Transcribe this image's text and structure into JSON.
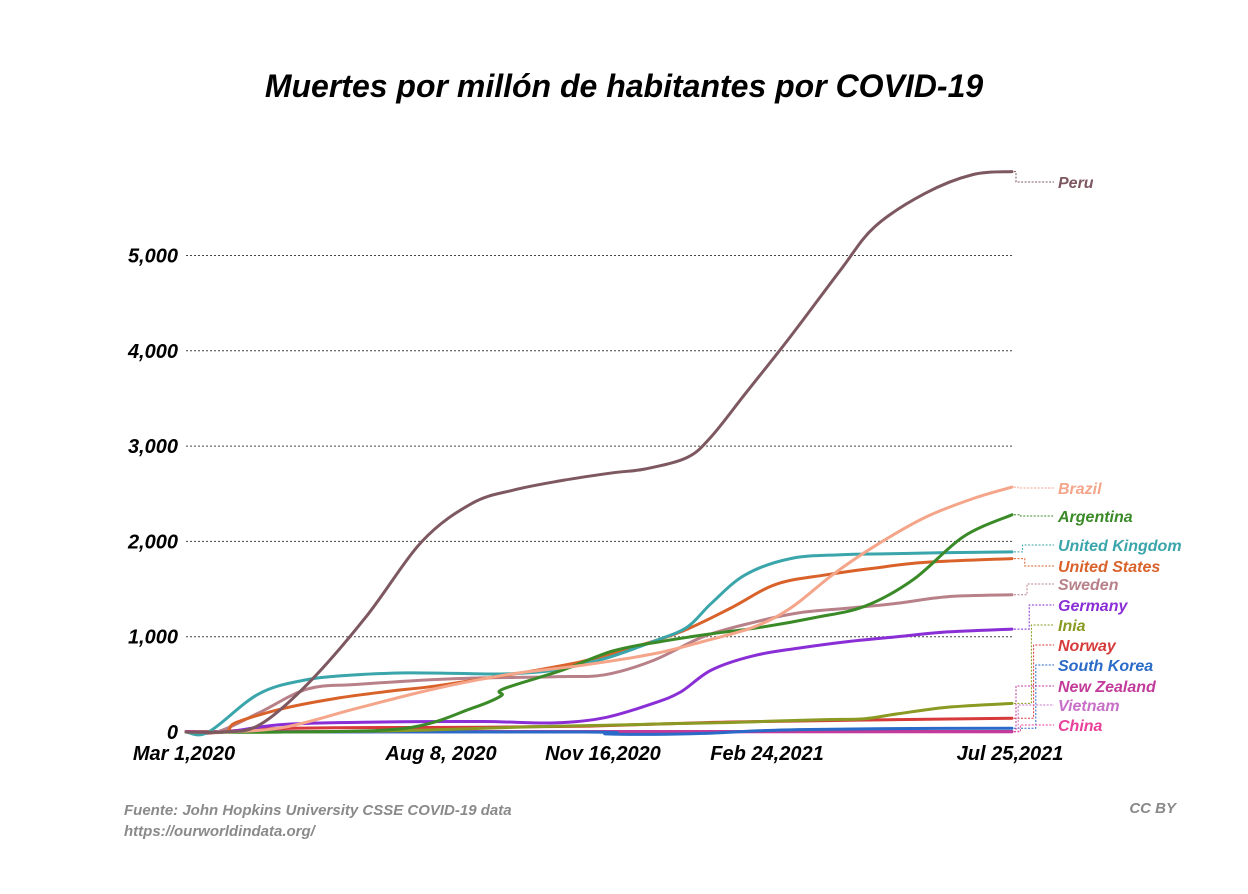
{
  "title": "Muertes por millón de habitantes por COVID-19",
  "source": "Fuente: John Hopkins University CSSE COVID-19 data",
  "url": "https://ourworldindata.org/",
  "license": "CC BY",
  "chart_data": {
    "type": "line",
    "title": "Muertes por millón de habitantes por COVID-19",
    "xlabel": "",
    "ylabel": "",
    "x_axis_type": "date",
    "x_ticks": [
      "Mar 1,2020",
      "Aug 8, 2020",
      "Nov 16,2020",
      "Feb 24,2021",
      "Jul 25,2021"
    ],
    "x_range": [
      "2020-03-01",
      "2021-07-25"
    ],
    "y_ticks": [
      "0",
      "1,000",
      "2,000",
      "3,000",
      "4,000",
      "5,000"
    ],
    "ylim": [
      0,
      6000
    ],
    "grid": "horizontal dotted",
    "legend": "right, labels at line ends",
    "series": [
      {
        "name": "Peru",
        "color": "#7d5860",
        "points": [
          [
            "2020-03-01",
            0
          ],
          [
            "2020-03-23",
            0
          ],
          [
            "2020-04-15",
            70
          ],
          [
            "2020-05-15",
            500
          ],
          [
            "2020-06-20",
            1200
          ],
          [
            "2020-07-25",
            2000
          ],
          [
            "2020-08-25",
            2400
          ],
          [
            "2020-09-20",
            2540
          ],
          [
            "2020-10-20",
            2640
          ],
          [
            "2020-11-20",
            2720
          ],
          [
            "2020-12-10",
            2760
          ],
          [
            "2021-01-05",
            2880
          ],
          [
            "2021-01-20",
            3100
          ],
          [
            "2021-02-10",
            3550
          ],
          [
            "2021-03-10",
            4150
          ],
          [
            "2021-04-10",
            4850
          ],
          [
            "2021-05-01",
            5300
          ],
          [
            "2021-06-01",
            5650
          ],
          [
            "2021-07-01",
            5850
          ],
          [
            "2021-07-25",
            5880
          ]
        ]
      },
      {
        "name": "Brazil",
        "color": "#f4a58a",
        "points": [
          [
            "2020-03-01",
            0
          ],
          [
            "2020-03-25",
            0
          ],
          [
            "2020-05-01",
            50
          ],
          [
            "2020-06-15",
            250
          ],
          [
            "2020-08-01",
            450
          ],
          [
            "2020-09-15",
            600
          ],
          [
            "2020-11-01",
            700
          ],
          [
            "2020-12-15",
            820
          ],
          [
            "2021-01-15",
            950
          ],
          [
            "2021-02-15",
            1100
          ],
          [
            "2021-03-10",
            1300
          ],
          [
            "2021-04-05",
            1650
          ],
          [
            "2021-05-01",
            1950
          ],
          [
            "2021-06-01",
            2250
          ],
          [
            "2021-07-01",
            2450
          ],
          [
            "2021-07-25",
            2570
          ]
        ]
      },
      {
        "name": "Argentina",
        "color": "#3a8a28",
        "points": [
          [
            "2020-03-01",
            0
          ],
          [
            "2020-05-01",
            0
          ],
          [
            "2020-07-15",
            40
          ],
          [
            "2020-08-25",
            250
          ],
          [
            "2020-09-12",
            380
          ],
          [
            "2020-09-13",
            450
          ],
          [
            "2020-10-20",
            650
          ],
          [
            "2020-11-20",
            850
          ],
          [
            "2020-12-20",
            950
          ],
          [
            "2021-01-20",
            1030
          ],
          [
            "2021-02-20",
            1100
          ],
          [
            "2021-03-25",
            1200
          ],
          [
            "2021-04-25",
            1320
          ],
          [
            "2021-05-25",
            1600
          ],
          [
            "2021-06-25",
            2050
          ],
          [
            "2021-07-25",
            2280
          ]
        ]
      },
      {
        "name": "United Kingdom",
        "color": "#3aa5aa",
        "points": [
          [
            "2020-03-01",
            0
          ],
          [
            "2020-03-15",
            0
          ],
          [
            "2020-04-15",
            400
          ],
          [
            "2020-05-15",
            550
          ],
          [
            "2020-06-15",
            600
          ],
          [
            "2020-07-15",
            620
          ],
          [
            "2020-08-15",
            615
          ],
          [
            "2020-09-15",
            610
          ],
          [
            "2020-10-15",
            650
          ],
          [
            "2020-11-15",
            770
          ],
          [
            "2020-12-15",
            950
          ],
          [
            "2021-01-05",
            1100
          ],
          [
            "2021-01-20",
            1350
          ],
          [
            "2021-02-10",
            1650
          ],
          [
            "2021-03-10",
            1820
          ],
          [
            "2021-04-10",
            1860
          ],
          [
            "2021-05-10",
            1870
          ],
          [
            "2021-06-10",
            1880
          ],
          [
            "2021-07-25",
            1890
          ]
        ]
      },
      {
        "name": "United States",
        "color": "#d9622a",
        "points": [
          [
            "2020-03-01",
            0
          ],
          [
            "2020-03-25",
            0
          ],
          [
            "2020-04-01",
            100
          ],
          [
            "2020-05-01",
            250
          ],
          [
            "2020-06-01",
            350
          ],
          [
            "2020-07-01",
            420
          ],
          [
            "2020-08-01",
            480
          ],
          [
            "2020-09-01",
            560
          ],
          [
            "2020-10-01",
            640
          ],
          [
            "2020-11-01",
            740
          ],
          [
            "2020-12-01",
            880
          ],
          [
            "2021-01-01",
            1050
          ],
          [
            "2021-02-01",
            1300
          ],
          [
            "2021-03-01",
            1550
          ],
          [
            "2021-04-01",
            1650
          ],
          [
            "2021-05-01",
            1720
          ],
          [
            "2021-06-01",
            1780
          ],
          [
            "2021-07-25",
            1820
          ]
        ]
      },
      {
        "name": "Sweden",
        "color": "#b88088",
        "points": [
          [
            "2020-03-01",
            0
          ],
          [
            "2020-03-20",
            0
          ],
          [
            "2020-04-15",
            200
          ],
          [
            "2020-05-15",
            450
          ],
          [
            "2020-06-15",
            500
          ],
          [
            "2020-08-15",
            560
          ],
          [
            "2020-10-15",
            580
          ],
          [
            "2020-11-15",
            600
          ],
          [
            "2020-12-15",
            750
          ],
          [
            "2021-01-15",
            1000
          ],
          [
            "2021-02-15",
            1150
          ],
          [
            "2021-03-15",
            1250
          ],
          [
            "2021-04-15",
            1300
          ],
          [
            "2021-05-15",
            1350
          ],
          [
            "2021-06-15",
            1420
          ],
          [
            "2021-07-25",
            1440
          ]
        ]
      },
      {
        "name": "Germany",
        "color": "#8a2ed6",
        "points": [
          [
            "2020-03-01",
            0
          ],
          [
            "2020-03-25",
            0
          ],
          [
            "2020-05-01",
            80
          ],
          [
            "2020-07-01",
            105
          ],
          [
            "2020-09-01",
            110
          ],
          [
            "2020-10-15",
            95
          ],
          [
            "2020-11-15",
            150
          ],
          [
            "2020-12-15",
            300
          ],
          [
            "2021-01-01",
            420
          ],
          [
            "2021-01-20",
            650
          ],
          [
            "2021-02-15",
            800
          ],
          [
            "2021-03-15",
            880
          ],
          [
            "2021-04-15",
            950
          ],
          [
            "2021-05-15",
            1000
          ],
          [
            "2021-06-15",
            1050
          ],
          [
            "2021-07-25",
            1080
          ]
        ]
      },
      {
        "name": "Inia",
        "color": "#8a9a22",
        "points": [
          [
            "2020-03-01",
            0
          ],
          [
            "2020-05-01",
            0
          ],
          [
            "2020-07-01",
            10
          ],
          [
            "2020-08-15",
            30
          ],
          [
            "2020-10-01",
            55
          ],
          [
            "2020-11-16",
            70
          ],
          [
            "2020-12-20",
            85
          ],
          [
            "2021-02-01",
            100
          ],
          [
            "2021-03-01",
            115
          ],
          [
            "2021-04-01",
            130
          ],
          [
            "2021-04-25",
            140
          ],
          [
            "2021-05-15",
            190
          ],
          [
            "2021-06-15",
            260
          ],
          [
            "2021-07-25",
            300
          ]
        ]
      },
      {
        "name": "Norway",
        "color": "#d63a3a",
        "points": [
          [
            "2020-03-01",
            0
          ],
          [
            "2020-03-20",
            0
          ],
          [
            "2020-04-15",
            30
          ],
          [
            "2020-06-01",
            45
          ],
          [
            "2020-09-01",
            50
          ],
          [
            "2020-11-01",
            60
          ],
          [
            "2020-12-01",
            75
          ],
          [
            "2021-01-01",
            90
          ],
          [
            "2021-02-01",
            105
          ],
          [
            "2021-04-01",
            120
          ],
          [
            "2021-05-15",
            130
          ],
          [
            "2021-07-25",
            145
          ]
        ]
      },
      {
        "name": "South Korea",
        "color": "#2a6ac8",
        "points": [
          [
            "2020-03-01",
            0
          ],
          [
            "2020-11-01",
            0
          ],
          [
            "2020-11-16",
            -20
          ],
          [
            "2020-12-15",
            -25
          ],
          [
            "2021-01-15",
            -15
          ],
          [
            "2021-02-15",
            10
          ],
          [
            "2021-03-15",
            25
          ],
          [
            "2021-05-01",
            35
          ],
          [
            "2021-07-25",
            40
          ]
        ]
      },
      {
        "name": "New Zealand",
        "color": "#c23a9a",
        "points": [
          [
            "2020-03-01",
            5
          ],
          [
            "2020-05-01",
            5
          ],
          [
            "2021-07-25",
            5
          ]
        ]
      },
      {
        "name": "Vietnam",
        "color": "#c870c8",
        "points": [
          [
            "2020-03-01",
            2
          ],
          [
            "2021-07-25",
            2
          ]
        ]
      },
      {
        "name": "China",
        "color": "#e8409a",
        "points": [
          [
            "2020-03-01",
            3
          ],
          [
            "2021-07-25",
            3
          ]
        ]
      }
    ],
    "line_end_labels": [
      {
        "series": "Peru",
        "label": "Peru"
      },
      {
        "series": "Brazil",
        "label": "Brazil"
      },
      {
        "series": "Argentina",
        "label": "Argentina"
      },
      {
        "series": "United Kingdom",
        "label": "United Kingdom"
      },
      {
        "series": "United States",
        "label": "United States"
      },
      {
        "series": "Sweden",
        "label": "Sweden"
      },
      {
        "series": "Germany",
        "label": "Germany"
      },
      {
        "series": "Inia",
        "label": "Inia"
      },
      {
        "series": "Norway",
        "label": "Norway"
      },
      {
        "series": "South Korea",
        "label": "South Korea"
      },
      {
        "series": "New Zealand",
        "label": "New Zealand"
      },
      {
        "series": "Vietnam",
        "label": "Vietnam"
      },
      {
        "series": "China",
        "label": "China"
      }
    ]
  }
}
